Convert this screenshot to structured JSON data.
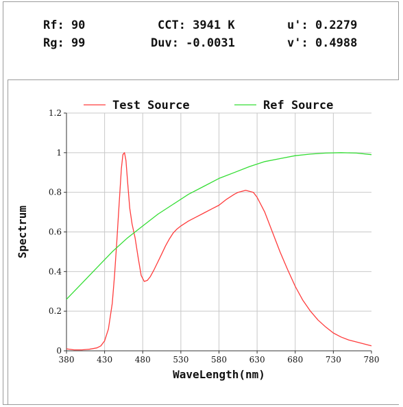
{
  "metrics": {
    "rf": "Rf: 90",
    "rg": "Rg: 99",
    "cct": "CCT: 3941 K",
    "duv": "Duv: -0.0031",
    "u_prime": "u': 0.2279",
    "v_prime": "v': 0.4988"
  },
  "chart_data": {
    "type": "line",
    "title": "",
    "xlabel": "WaveLength(nm)",
    "ylabel": "Spectrum",
    "xlim": [
      380,
      780
    ],
    "ylim": [
      0,
      1.2
    ],
    "x_ticks": [
      "380",
      "430",
      "480",
      "530",
      "580",
      "630",
      "680",
      "730",
      "780"
    ],
    "y_ticks": [
      "0",
      "0.2",
      "0.4",
      "0.6",
      "0.8",
      "1",
      "1.2"
    ],
    "grid": true,
    "legend_position": "top",
    "series": [
      {
        "name": "Test Source",
        "color": "#ff3b3b",
        "x": [
          380,
          390,
          400,
          410,
          420,
          425,
          430,
          435,
          440,
          443,
          446,
          449,
          452,
          454,
          456,
          458,
          460,
          463,
          466,
          470,
          474,
          478,
          482,
          486,
          490,
          495,
          500,
          505,
          510,
          515,
          520,
          525,
          530,
          540,
          550,
          560,
          570,
          580,
          590,
          600,
          605,
          610,
          615,
          620,
          625,
          630,
          640,
          650,
          660,
          670,
          680,
          690,
          700,
          710,
          720,
          730,
          740,
          750,
          760,
          770,
          780
        ],
        "y": [
          0.01,
          0.005,
          0.005,
          0.008,
          0.015,
          0.025,
          0.05,
          0.11,
          0.24,
          0.38,
          0.55,
          0.74,
          0.92,
          0.99,
          1.0,
          0.96,
          0.86,
          0.72,
          0.64,
          0.57,
          0.47,
          0.38,
          0.35,
          0.355,
          0.375,
          0.41,
          0.45,
          0.49,
          0.53,
          0.565,
          0.595,
          0.615,
          0.63,
          0.655,
          0.675,
          0.695,
          0.715,
          0.735,
          0.765,
          0.79,
          0.8,
          0.805,
          0.81,
          0.805,
          0.8,
          0.775,
          0.7,
          0.6,
          0.5,
          0.41,
          0.325,
          0.255,
          0.2,
          0.155,
          0.12,
          0.09,
          0.07,
          0.055,
          0.045,
          0.035,
          0.025
        ]
      },
      {
        "name": "Ref Source",
        "color": "#33dd33",
        "x": [
          380,
          400,
          420,
          440,
          460,
          480,
          500,
          520,
          540,
          560,
          580,
          600,
          620,
          640,
          660,
          680,
          700,
          720,
          740,
          760,
          780
        ],
        "y": [
          0.26,
          0.34,
          0.42,
          0.5,
          0.57,
          0.63,
          0.69,
          0.74,
          0.79,
          0.83,
          0.87,
          0.9,
          0.93,
          0.955,
          0.97,
          0.985,
          0.993,
          0.998,
          1.0,
          0.998,
          0.99
        ]
      }
    ]
  }
}
